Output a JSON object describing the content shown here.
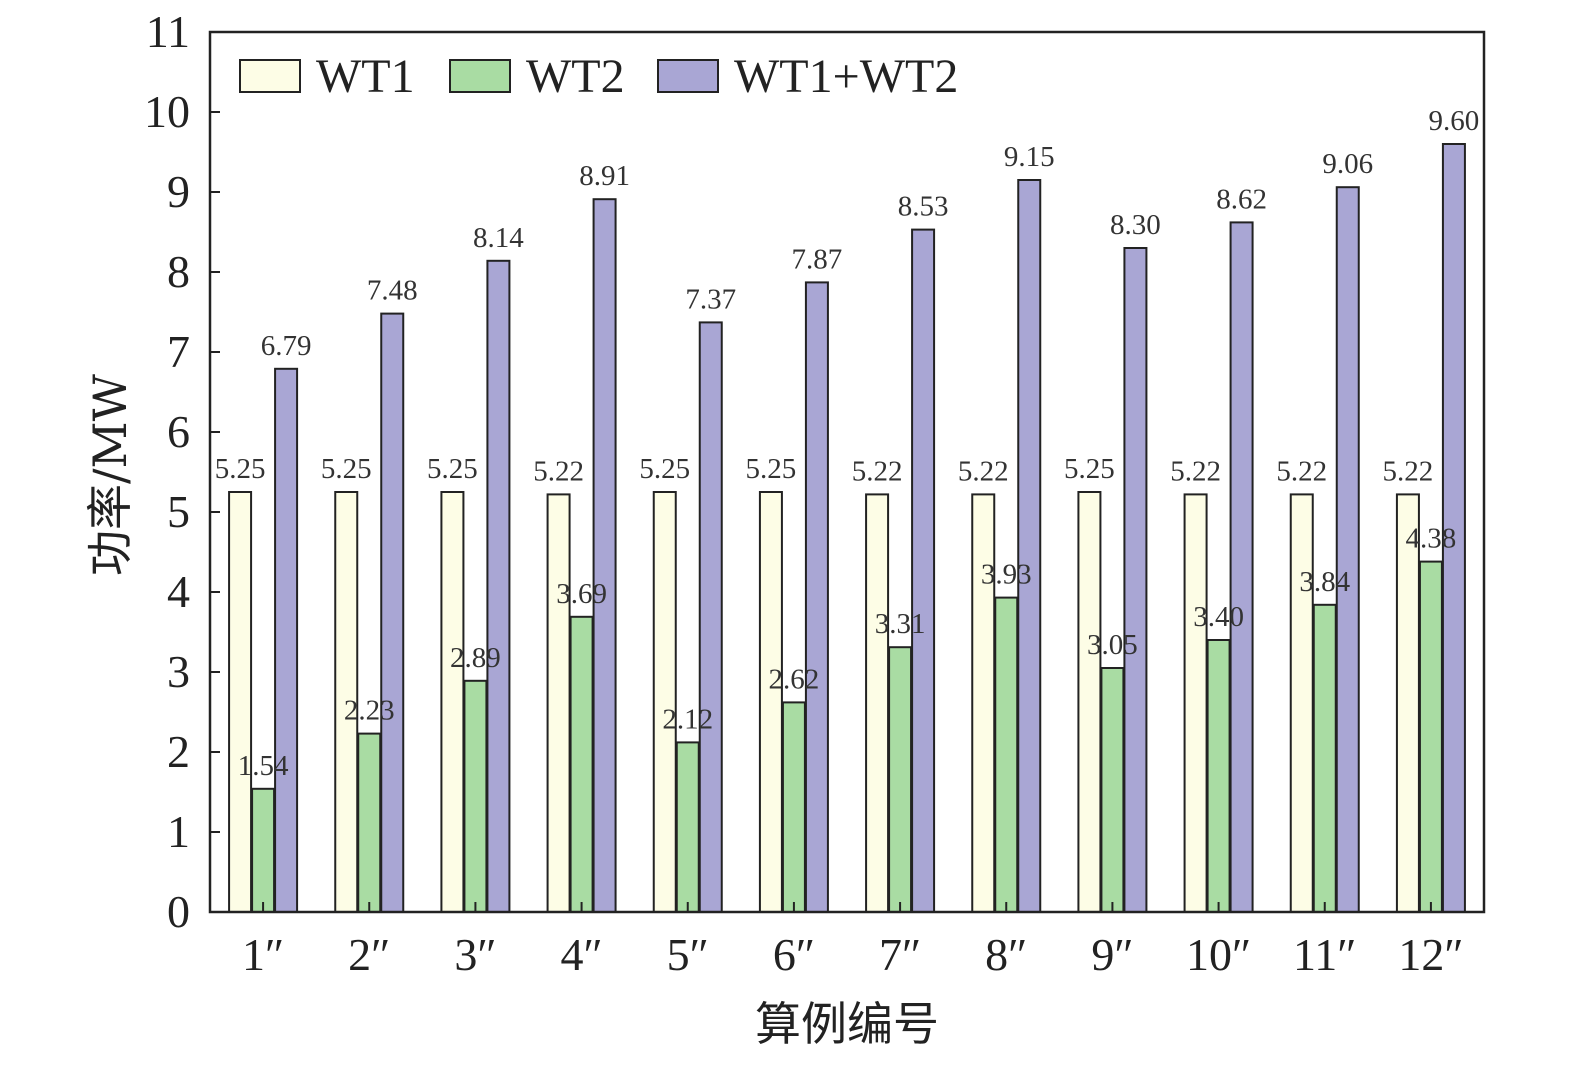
{
  "chart_data": {
    "type": "bar",
    "title": "",
    "xlabel": "算例编号",
    "ylabel": "功率/MW",
    "ylim": [
      0,
      11
    ],
    "yticks": [
      "0",
      "1",
      "2",
      "3",
      "4",
      "5",
      "6",
      "7",
      "8",
      "9",
      "10",
      "11"
    ],
    "grid": false,
    "legend_position": "top-left",
    "categories": [
      "1″",
      "2″",
      "3″",
      "4″",
      "5″",
      "6″",
      "7″",
      "8″",
      "9″",
      "10″",
      "11″",
      "12″"
    ],
    "series": [
      {
        "name": "WT1",
        "color": "#fdfde6",
        "values": [
          5.25,
          5.25,
          5.25,
          5.22,
          5.25,
          5.25,
          5.22,
          5.22,
          5.25,
          5.22,
          5.22,
          5.22
        ],
        "labels": [
          "5.25",
          "5.25",
          "5.25",
          "5.22",
          "5.25",
          "5.25",
          "5.22",
          "5.22",
          "5.25",
          "5.22",
          "5.22",
          "5.22"
        ]
      },
      {
        "name": "WT2",
        "color": "#a9dca3",
        "values": [
          1.54,
          2.23,
          2.89,
          3.69,
          2.12,
          2.62,
          3.31,
          3.93,
          3.05,
          3.4,
          3.84,
          4.38
        ],
        "labels": [
          "1.54",
          "2.23",
          "2.89",
          "3.69",
          "2.12",
          "2.62",
          "3.31",
          "3.93",
          "3.05",
          "3.40",
          "3.84",
          "4.38"
        ]
      },
      {
        "name": "WT1+WT2",
        "color": "#a9a6d4",
        "values": [
          6.79,
          7.48,
          8.14,
          8.91,
          7.37,
          7.87,
          8.53,
          9.15,
          8.3,
          8.62,
          9.06,
          9.6
        ],
        "labels": [
          "6.79",
          "7.48",
          "8.14",
          "8.91",
          "7.37",
          "7.87",
          "8.53",
          "9.15",
          "8.30",
          "8.62",
          "9.06",
          "9.60"
        ]
      }
    ]
  }
}
